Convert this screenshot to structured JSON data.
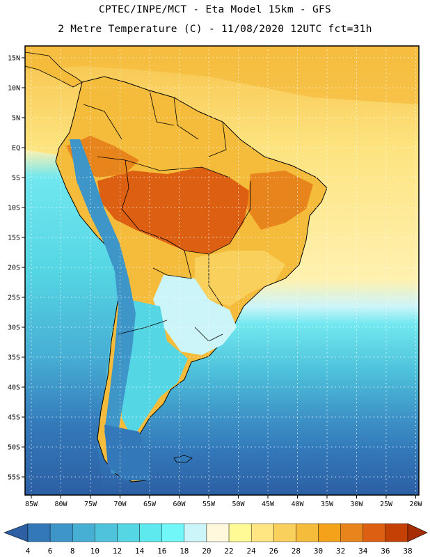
{
  "header": {
    "line1": "CPTEC/INPE/MCT -  Eta Model 15km - GFS",
    "line2": "2 Metre Temperature (C) - 11/08/2020 12UTC fct=31h"
  },
  "map": {
    "lat_labels": [
      "15N",
      "10N",
      "5N",
      "EQ",
      "5S",
      "10S",
      "15S",
      "20S",
      "25S",
      "30S",
      "35S",
      "40S",
      "45S",
      "50S",
      "55S"
    ],
    "lon_labels": [
      "85W",
      "80W",
      "75W",
      "70W",
      "65W",
      "60W",
      "55W",
      "50W",
      "45W",
      "40W",
      "35W",
      "30W",
      "25W",
      "20W"
    ]
  },
  "colorbar": {
    "labels": [
      "4",
      "6",
      "8",
      "10",
      "12",
      "14",
      "16",
      "18",
      "20",
      "22",
      "24",
      "26",
      "28",
      "30",
      "32",
      "34",
      "36",
      "38"
    ],
    "colors": [
      "#2c5fa3",
      "#3379ba",
      "#3e96c8",
      "#47aed4",
      "#4fc3dc",
      "#55d6e4",
      "#5ee9ee",
      "#71f7f7",
      "#ccf5f9",
      "#fff8dd",
      "#fffa96",
      "#ffe682",
      "#fad05c",
      "#f5bb3a",
      "#f3a21a",
      "#e8841c",
      "#dd6012",
      "#c44004",
      "#a62d04"
    ]
  },
  "colors": {
    "ocean_north": "#fde68a",
    "ocean_mid": "#4fc3dc",
    "ocean_south": "#2c5fa3",
    "land_hot": "#dd6012",
    "land_warm": "#f5bb3a",
    "andes_cold": "#3e96c8",
    "grid": "#ffffff"
  }
}
